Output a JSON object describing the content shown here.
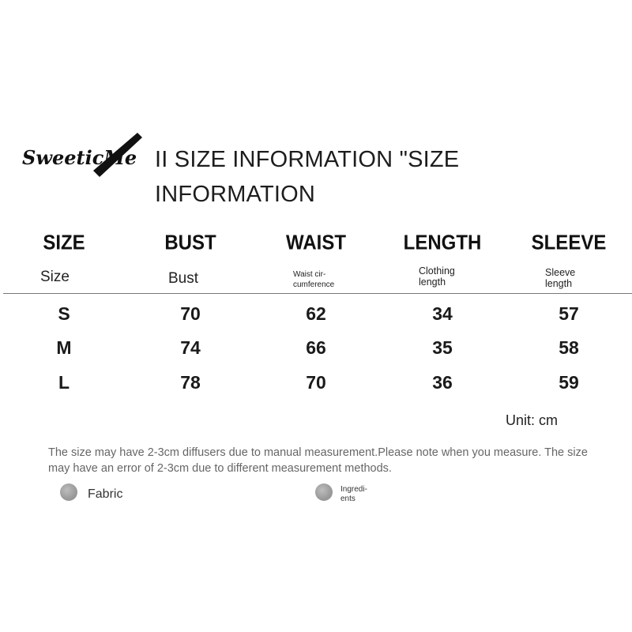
{
  "brand": {
    "logo_text": "SweeticMe"
  },
  "title": "II SIZE INFORMATION \"SIZE INFORMATION",
  "table": {
    "headers": [
      "SIZE",
      "BUST",
      "WAIST",
      "LENGTH",
      "SLEEVE"
    ],
    "subheaders": {
      "size": "Size",
      "bust": "Bust",
      "waist": [
        "Waist cir-",
        "cumference"
      ],
      "length": [
        "Clothing",
        "length"
      ],
      "sleeve": [
        "Sleeve",
        "length"
      ]
    },
    "rows": [
      [
        "S",
        "70",
        "62",
        "34",
        "57"
      ],
      [
        "M",
        "74",
        "66",
        "35",
        "58"
      ],
      [
        "L",
        "78",
        "70",
        "36",
        "59"
      ]
    ]
  },
  "unit": "Unit: cm",
  "note": "The size may have 2-3cm diffusers due to manual measurement.Please note when you measure. The size may have an error of 2-3cm due to different measurement methods.",
  "legend": {
    "fabric": "Fabric",
    "ingredients": [
      "Ingredi-",
      "ents"
    ]
  },
  "colors": {
    "text": "#1a1a1a",
    "note": "#666666",
    "divider": "#777777",
    "dot": "#9a9a9a"
  }
}
